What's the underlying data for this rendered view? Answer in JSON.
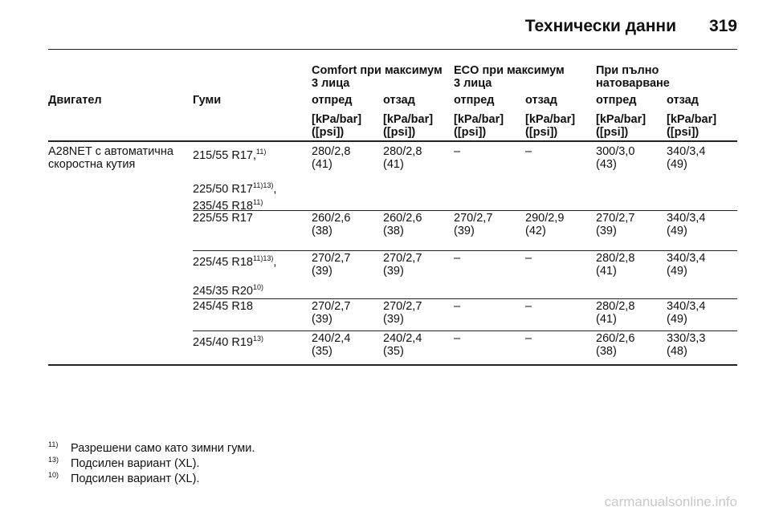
{
  "header": {
    "title": "Технически данни",
    "page": "319"
  },
  "table": {
    "group_headers": [
      [
        "Comfort при максимум",
        "3 лица"
      ],
      [
        "ECO при максимум",
        "3 лица"
      ],
      [
        "При пълно",
        "натоварване"
      ]
    ],
    "columns": [
      "Двигател",
      "Гуми",
      "отпред",
      "отзад",
      "отпред",
      "отзад",
      "отпред",
      "отзад"
    ],
    "units": [
      [
        "[kPa/bar]",
        "([psi])"
      ],
      [
        "[kPa/bar]",
        "([psi])"
      ],
      [
        "[kPa/bar]",
        "([psi])"
      ],
      [
        "[kPa/bar]",
        "([psi])"
      ],
      [
        "[kPa/bar]",
        "([psi])"
      ],
      [
        "[kPa/bar]",
        "([psi])"
      ]
    ],
    "rows": [
      {
        "engine": [
          "A28NET с автоматична",
          "скоростна кутия"
        ],
        "tires": [
          {
            "text": "215/55 R17,",
            "sup": "11)"
          },
          {
            "text": "225/50 R17",
            "sup": "11)13)",
            "after": ","
          },
          {
            "text": "235/45 R18",
            "sup": "11)"
          }
        ],
        "values": [
          [
            "280/2,8",
            "(41)"
          ],
          [
            "280/2,8",
            "(41)"
          ],
          "–",
          "–",
          [
            "300/3,0",
            "(43)"
          ],
          [
            "340/3,4",
            "(49)"
          ]
        ]
      },
      {
        "tires": [
          {
            "text": "225/55 R17"
          }
        ],
        "values": [
          [
            "260/2,6",
            "(38)"
          ],
          [
            "260/2,6",
            "(38)"
          ],
          [
            "270/2,7",
            "(39)"
          ],
          [
            "290/2,9",
            "(42)"
          ],
          [
            "270/2,7",
            "(39)"
          ],
          [
            "340/3,4",
            "(49)"
          ]
        ]
      },
      {
        "tires": [
          {
            "text": "225/45 R18",
            "sup": "11)13)",
            "after": ","
          },
          {
            "text": "245/35 R20",
            "sup": "10)"
          }
        ],
        "values": [
          [
            "270/2,7",
            "(39)"
          ],
          [
            "270/2,7",
            "(39)"
          ],
          "–",
          "–",
          [
            "280/2,8",
            "(41)"
          ],
          [
            "340/3,4",
            "(49)"
          ]
        ]
      },
      {
        "tires": [
          {
            "text": "245/45 R18"
          }
        ],
        "values": [
          [
            "270/2,7",
            "(39)"
          ],
          [
            "270/2,7",
            "(39)"
          ],
          "–",
          "–",
          [
            "280/2,8",
            "(41)"
          ],
          [
            "340/3,4",
            "(49)"
          ]
        ]
      },
      {
        "tires": [
          {
            "text": "245/40 R19",
            "sup": "13)"
          }
        ],
        "values": [
          [
            "240/2,4",
            "(35)"
          ],
          [
            "240/2,4",
            "(35)"
          ],
          "–",
          "–",
          [
            "260/2,6",
            "(38)"
          ],
          [
            "330/3,3",
            "(48)"
          ]
        ]
      }
    ]
  },
  "footnotes": [
    {
      "mark": "11)",
      "text": "Разрешени само като зимни гуми."
    },
    {
      "mark": "13)",
      "text": "Подсилен вариант (XL)."
    },
    {
      "mark": "10)",
      "text": "Подсилен вариант (XL)."
    }
  ],
  "watermark": "carmanualsonline.info"
}
